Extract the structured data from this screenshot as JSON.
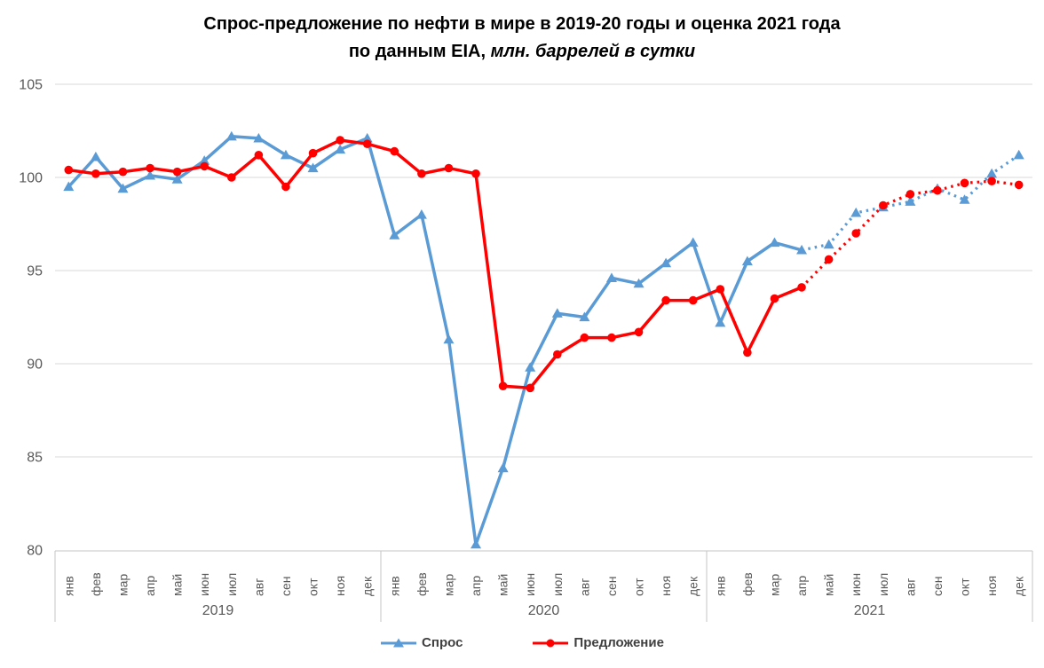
{
  "title": {
    "line1": "Спрос-предложение по нефти в мире в 2019-20 годы и оценка 2021 года",
    "line2_bold": "по данным EIA,",
    "line2_italic": " млн. баррелей в сутки"
  },
  "chart_data": {
    "type": "line",
    "ylim": [
      80,
      105
    ],
    "y_ticks": [
      105,
      100,
      95,
      90,
      85,
      80
    ],
    "grid": "horizontal",
    "legend_position": "bottom",
    "years": [
      "2019",
      "2020",
      "2021"
    ],
    "month_labels": [
      "янв",
      "фев",
      "мар",
      "апр",
      "май",
      "июн",
      "июл",
      "авг",
      "сен",
      "окт",
      "ноя",
      "дек"
    ],
    "estimate_note": "dotted segments from апр 2021 onward are the 2021 estimate",
    "estimate_start_index": 27,
    "series": [
      {
        "name": "Спрос",
        "slug": "demand",
        "color": "#5B9BD5",
        "marker": "triangle",
        "values": [
          99.5,
          101.1,
          99.4,
          100.1,
          99.9,
          100.9,
          102.2,
          102.1,
          101.2,
          100.5,
          101.5,
          102.1,
          96.9,
          98.0,
          91.3,
          80.3,
          84.4,
          89.8,
          92.7,
          92.5,
          94.6,
          94.3,
          95.4,
          96.5,
          92.2,
          95.5,
          96.5,
          96.1,
          96.4,
          98.1,
          98.4,
          98.7,
          99.4,
          98.8,
          100.2,
          101.2
        ]
      },
      {
        "name": "Предложение",
        "slug": "supply",
        "color": "#FF0000",
        "marker": "circle",
        "values": [
          100.4,
          100.2,
          100.3,
          100.5,
          100.3,
          100.6,
          100.0,
          101.2,
          99.5,
          101.3,
          102.0,
          101.8,
          101.4,
          100.2,
          100.5,
          100.2,
          88.8,
          88.7,
          90.5,
          91.4,
          91.4,
          91.7,
          93.4,
          93.4,
          94.0,
          90.6,
          93.5,
          94.1,
          95.6,
          97.0,
          98.5,
          99.1,
          99.3,
          99.7,
          99.8,
          99.6
        ]
      }
    ],
    "colors": {
      "gridline": "#D9D9D9",
      "axis_border": "#C6C6C6",
      "tick_label": "#595959",
      "title_text": "#000000",
      "legend_text": "#404040"
    }
  }
}
